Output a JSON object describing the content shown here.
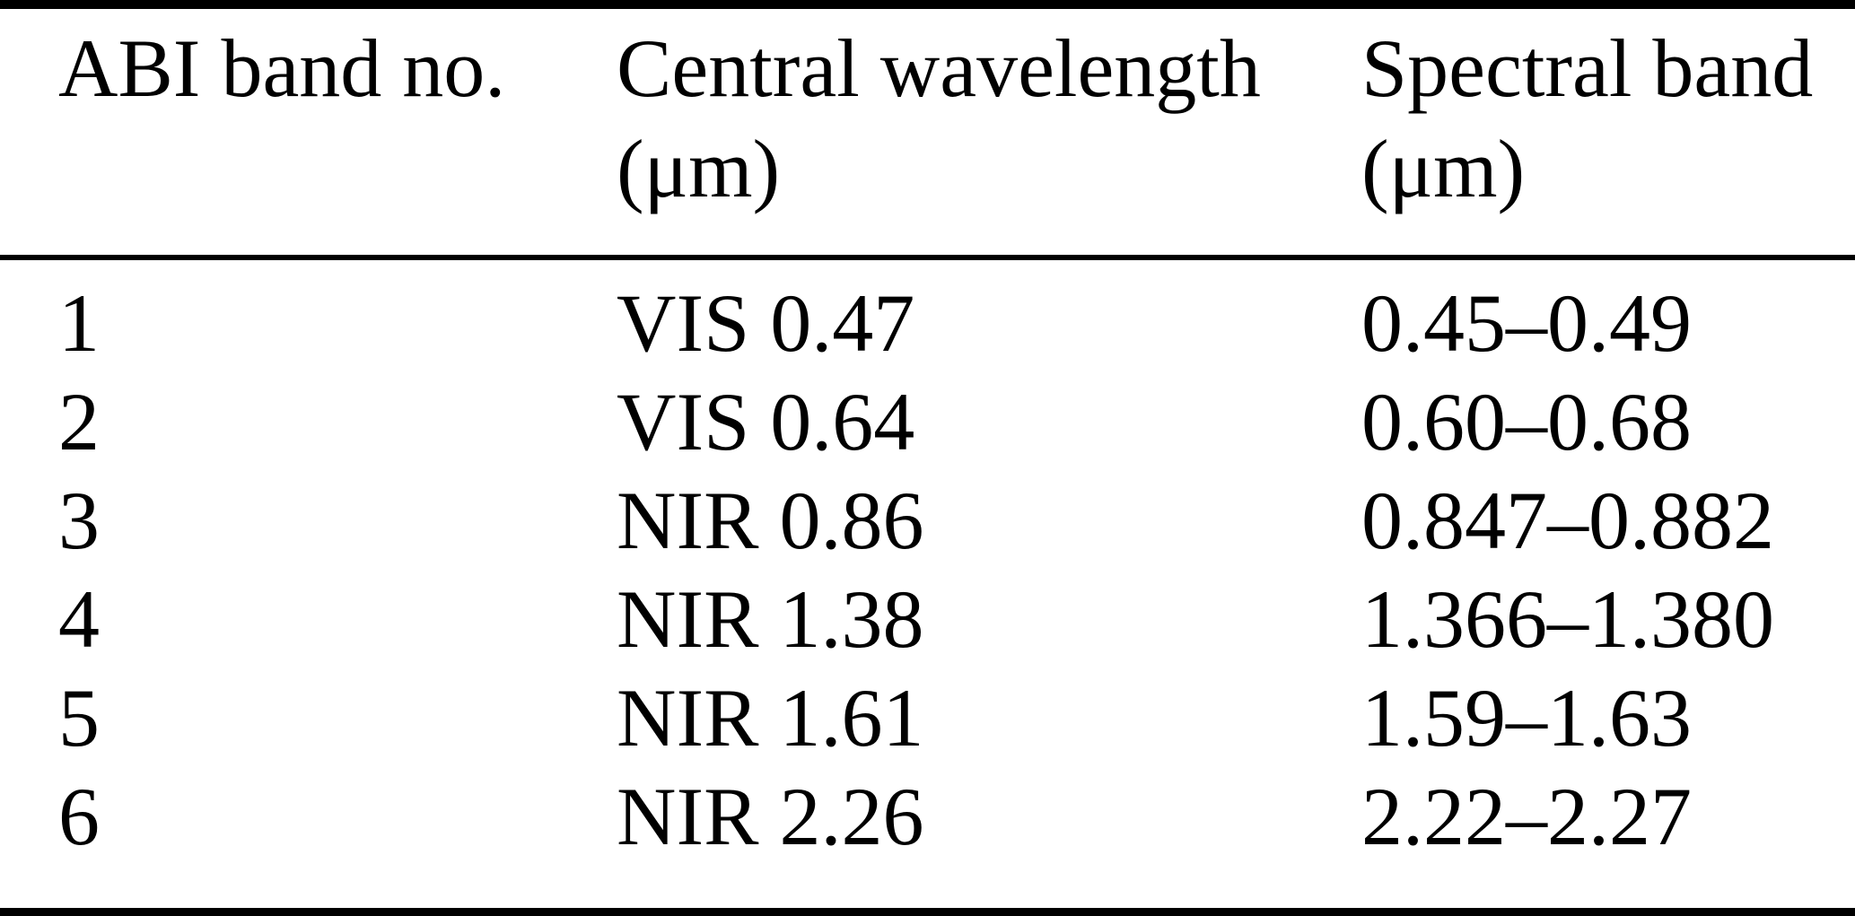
{
  "table": {
    "columns": [
      {
        "label": "ABI band no.",
        "unit": ""
      },
      {
        "label": "Central wavelength",
        "unit": "(μm)"
      },
      {
        "label": "Spectral band",
        "unit": "(μm)"
      }
    ],
    "rows": [
      {
        "band_no": "1",
        "central_wavelength": "VIS 0.47",
        "spectral_band": "0.45–0.49"
      },
      {
        "band_no": "2",
        "central_wavelength": "VIS 0.64",
        "spectral_band": "0.60–0.68"
      },
      {
        "band_no": "3",
        "central_wavelength": "NIR 0.86",
        "spectral_band": "0.847–0.882"
      },
      {
        "band_no": "4",
        "central_wavelength": "NIR 1.38",
        "spectral_band": "1.366–1.380"
      },
      {
        "band_no": "5",
        "central_wavelength": "NIR 1.61",
        "spectral_band": "1.59–1.63"
      },
      {
        "band_no": "6",
        "central_wavelength": "NIR 2.26",
        "spectral_band": "2.22–2.27"
      }
    ],
    "colors": {
      "text": "#000000",
      "background": "#ffffff",
      "rule": "#000000"
    }
  }
}
